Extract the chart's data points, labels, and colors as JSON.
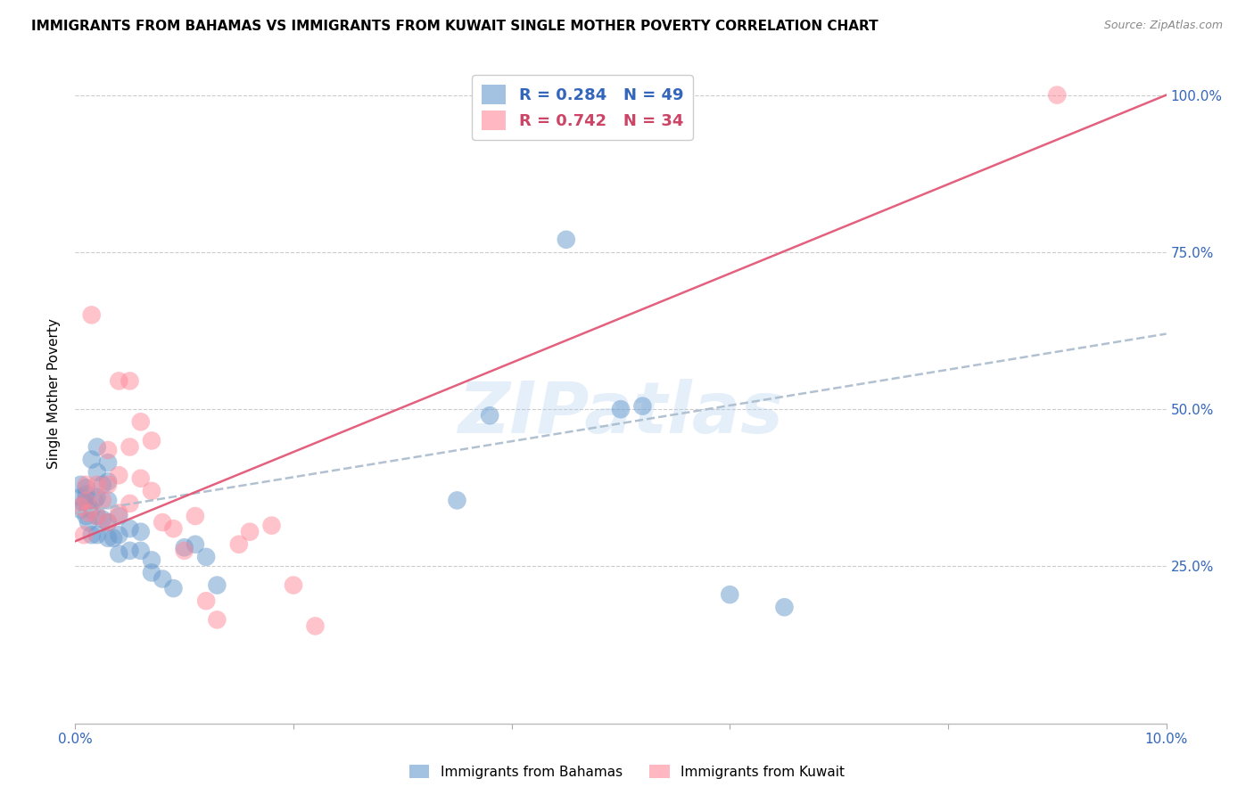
{
  "title": "IMMIGRANTS FROM BAHAMAS VS IMMIGRANTS FROM KUWAIT SINGLE MOTHER POVERTY CORRELATION CHART",
  "source": "Source: ZipAtlas.com",
  "ylabel": "Single Mother Poverty",
  "legend_label1": "Immigrants from Bahamas",
  "legend_label2": "Immigrants from Kuwait",
  "R1": "0.284",
  "N1": "49",
  "R2": "0.742",
  "N2": "34",
  "color1": "#6699CC",
  "color2": "#FF8899",
  "line_color2": "#E05070",
  "xmin": 0.0,
  "xmax": 0.1,
  "ymin": 0.0,
  "ymax": 1.05,
  "yticks": [
    0.0,
    0.25,
    0.5,
    0.75,
    1.0
  ],
  "ytick_labels": [
    "",
    "25.0%",
    "50.0%",
    "75.0%",
    "100.0%"
  ],
  "xticks": [
    0.0,
    0.02,
    0.04,
    0.06,
    0.08,
    0.1
  ],
  "xtick_labels": [
    "0.0%",
    "",
    "",
    "",
    "",
    "10.0%"
  ],
  "watermark": "ZIPatlas",
  "bahamas_x": [
    0.0005,
    0.0005,
    0.0005,
    0.0008,
    0.001,
    0.001,
    0.001,
    0.001,
    0.0012,
    0.0012,
    0.0015,
    0.0015,
    0.0015,
    0.0018,
    0.002,
    0.002,
    0.002,
    0.002,
    0.002,
    0.0025,
    0.0025,
    0.003,
    0.003,
    0.003,
    0.003,
    0.003,
    0.0035,
    0.004,
    0.004,
    0.004,
    0.005,
    0.005,
    0.006,
    0.006,
    0.007,
    0.007,
    0.008,
    0.009,
    0.01,
    0.011,
    0.012,
    0.013,
    0.035,
    0.038,
    0.045,
    0.05,
    0.052,
    0.06,
    0.065
  ],
  "bahamas_y": [
    0.34,
    0.36,
    0.38,
    0.35,
    0.33,
    0.355,
    0.365,
    0.375,
    0.32,
    0.345,
    0.3,
    0.34,
    0.42,
    0.355,
    0.3,
    0.33,
    0.36,
    0.4,
    0.44,
    0.325,
    0.38,
    0.295,
    0.32,
    0.355,
    0.385,
    0.415,
    0.295,
    0.27,
    0.3,
    0.33,
    0.275,
    0.31,
    0.275,
    0.305,
    0.26,
    0.24,
    0.23,
    0.215,
    0.28,
    0.285,
    0.265,
    0.22,
    0.355,
    0.49,
    0.77,
    0.5,
    0.505,
    0.205,
    0.185
  ],
  "kuwait_x": [
    0.0005,
    0.0008,
    0.001,
    0.001,
    0.0012,
    0.0015,
    0.002,
    0.002,
    0.0025,
    0.003,
    0.003,
    0.003,
    0.004,
    0.004,
    0.004,
    0.005,
    0.005,
    0.005,
    0.006,
    0.006,
    0.007,
    0.007,
    0.008,
    0.009,
    0.01,
    0.011,
    0.012,
    0.013,
    0.015,
    0.016,
    0.018,
    0.02,
    0.022,
    0.09
  ],
  "kuwait_y": [
    0.345,
    0.3,
    0.355,
    0.38,
    0.335,
    0.65,
    0.33,
    0.38,
    0.355,
    0.32,
    0.38,
    0.435,
    0.335,
    0.395,
    0.545,
    0.35,
    0.44,
    0.545,
    0.39,
    0.48,
    0.37,
    0.45,
    0.32,
    0.31,
    0.275,
    0.33,
    0.195,
    0.165,
    0.285,
    0.305,
    0.315,
    0.22,
    0.155,
    1.0
  ],
  "bahamas_line_x": [
    0.0,
    0.1
  ],
  "bahamas_line_y": [
    0.335,
    0.62
  ],
  "kuwait_line_x": [
    0.0,
    0.1
  ],
  "kuwait_line_y": [
    0.29,
    1.0
  ],
  "axis_color": "#3366BB",
  "grid_color": "#CCCCCC",
  "title_fontsize": 11,
  "label_fontsize": 11,
  "tick_fontsize": 11,
  "legend_fontsize": 13
}
